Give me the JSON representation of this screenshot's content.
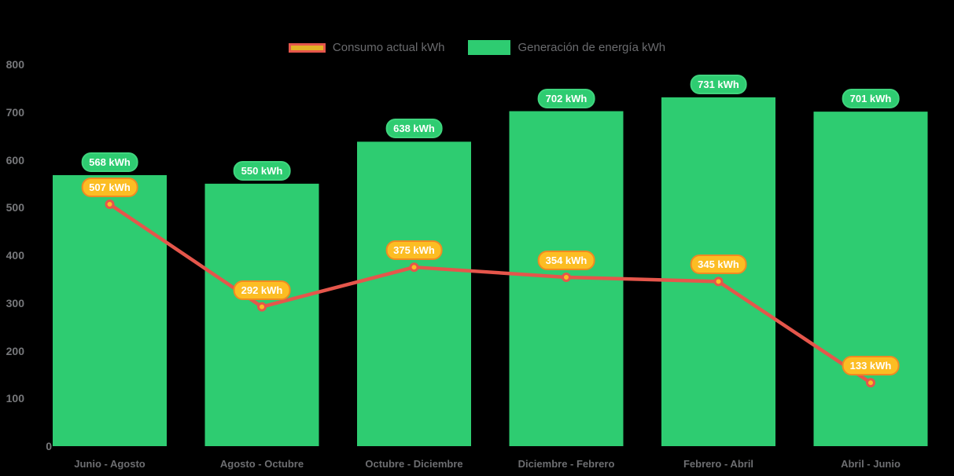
{
  "chart_data": {
    "type": "bar+line",
    "title": "",
    "xlabel": "",
    "ylabel": "",
    "categories": [
      "Junio - Agosto",
      "Agosto - Octubre",
      "Octubre - Diciembre",
      "Diciembre - Febrero",
      "Febrero - Abril",
      "Abril - Junio"
    ],
    "series": [
      {
        "name": "Consumo actual kWh",
        "type": "line",
        "values": [
          507,
          292,
          375,
          354,
          345,
          133
        ],
        "labels": [
          "507 kWh",
          "292 kWh",
          "375 kWh",
          "354 kWh",
          "345 kWh",
          "133 kWh"
        ],
        "color": "#e5564b",
        "marker_fill": "#fcbd23",
        "label_fill": "#fcbd23",
        "label_border": "#ef8a22"
      },
      {
        "name": "Generación de energía kWh",
        "type": "bar",
        "values": [
          568,
          550,
          638,
          702,
          731,
          701
        ],
        "labels": [
          "568 kWh",
          "550 kWh",
          "638 kWh",
          "702 kWh",
          "731 kWh",
          "701 kWh"
        ],
        "color": "#2ecc71"
      }
    ],
    "ylim": [
      0,
      800
    ],
    "ytick_step": 100,
    "ytick_labels": [
      "0",
      "100",
      "200",
      "300",
      "400",
      "500",
      "600",
      "700",
      "800"
    ],
    "grid": false,
    "legend_position": "top-center",
    "background": "#000000",
    "colors": {
      "bar": "#2ecc71",
      "line": "#e5564b",
      "marker_fill": "#fcbd23",
      "pill_line_border": "#ef8a22",
      "ytick_text": "#77787b",
      "xlabel_text": "#6d6e71",
      "legend_text": "#6a6b6e",
      "legend_line_inner": "#e4b125"
    }
  }
}
